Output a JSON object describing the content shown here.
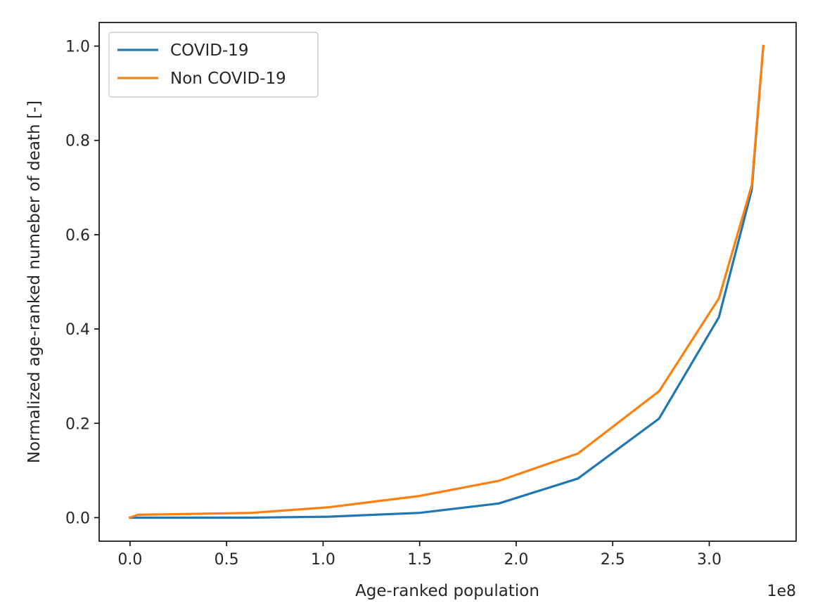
{
  "chart_data": {
    "type": "line",
    "xlabel": "Age-ranked population",
    "ylabel": "Normalized age-ranked numeber of death [-]",
    "x_offset_label": "1e8",
    "xlim": [
      -0.16,
      3.45
    ],
    "ylim": [
      -0.05,
      1.05
    ],
    "x_ticks": [
      0.0,
      0.5,
      1.0,
      1.5,
      2.0,
      2.5,
      3.0
    ],
    "x_tick_labels": [
      "0.0",
      "0.5",
      "1.0",
      "1.5",
      "2.0",
      "2.5",
      "3.0"
    ],
    "y_ticks": [
      0.0,
      0.2,
      0.4,
      0.6,
      0.8,
      1.0
    ],
    "y_tick_labels": [
      "0.0",
      "0.2",
      "0.4",
      "0.6",
      "0.8",
      "1.0"
    ],
    "grid": false,
    "legend_position": "top-left",
    "series": [
      {
        "name": "COVID-19",
        "color": "#1f77b4",
        "x": [
          0.0,
          0.04,
          0.63,
          1.03,
          1.5,
          1.91,
          2.32,
          2.74,
          3.05,
          3.22,
          3.28
        ],
        "y": [
          0.0,
          0.0,
          0.0,
          0.002,
          0.01,
          0.03,
          0.083,
          0.21,
          0.425,
          0.695,
          1.0
        ]
      },
      {
        "name": "Non COVID-19",
        "color": "#ff7f0e",
        "x": [
          0.0,
          0.04,
          0.63,
          1.03,
          1.5,
          1.91,
          2.32,
          2.74,
          3.05,
          3.22,
          3.28
        ],
        "y": [
          0.0,
          0.006,
          0.01,
          0.022,
          0.046,
          0.078,
          0.136,
          0.268,
          0.465,
          0.705,
          1.0
        ]
      }
    ]
  }
}
